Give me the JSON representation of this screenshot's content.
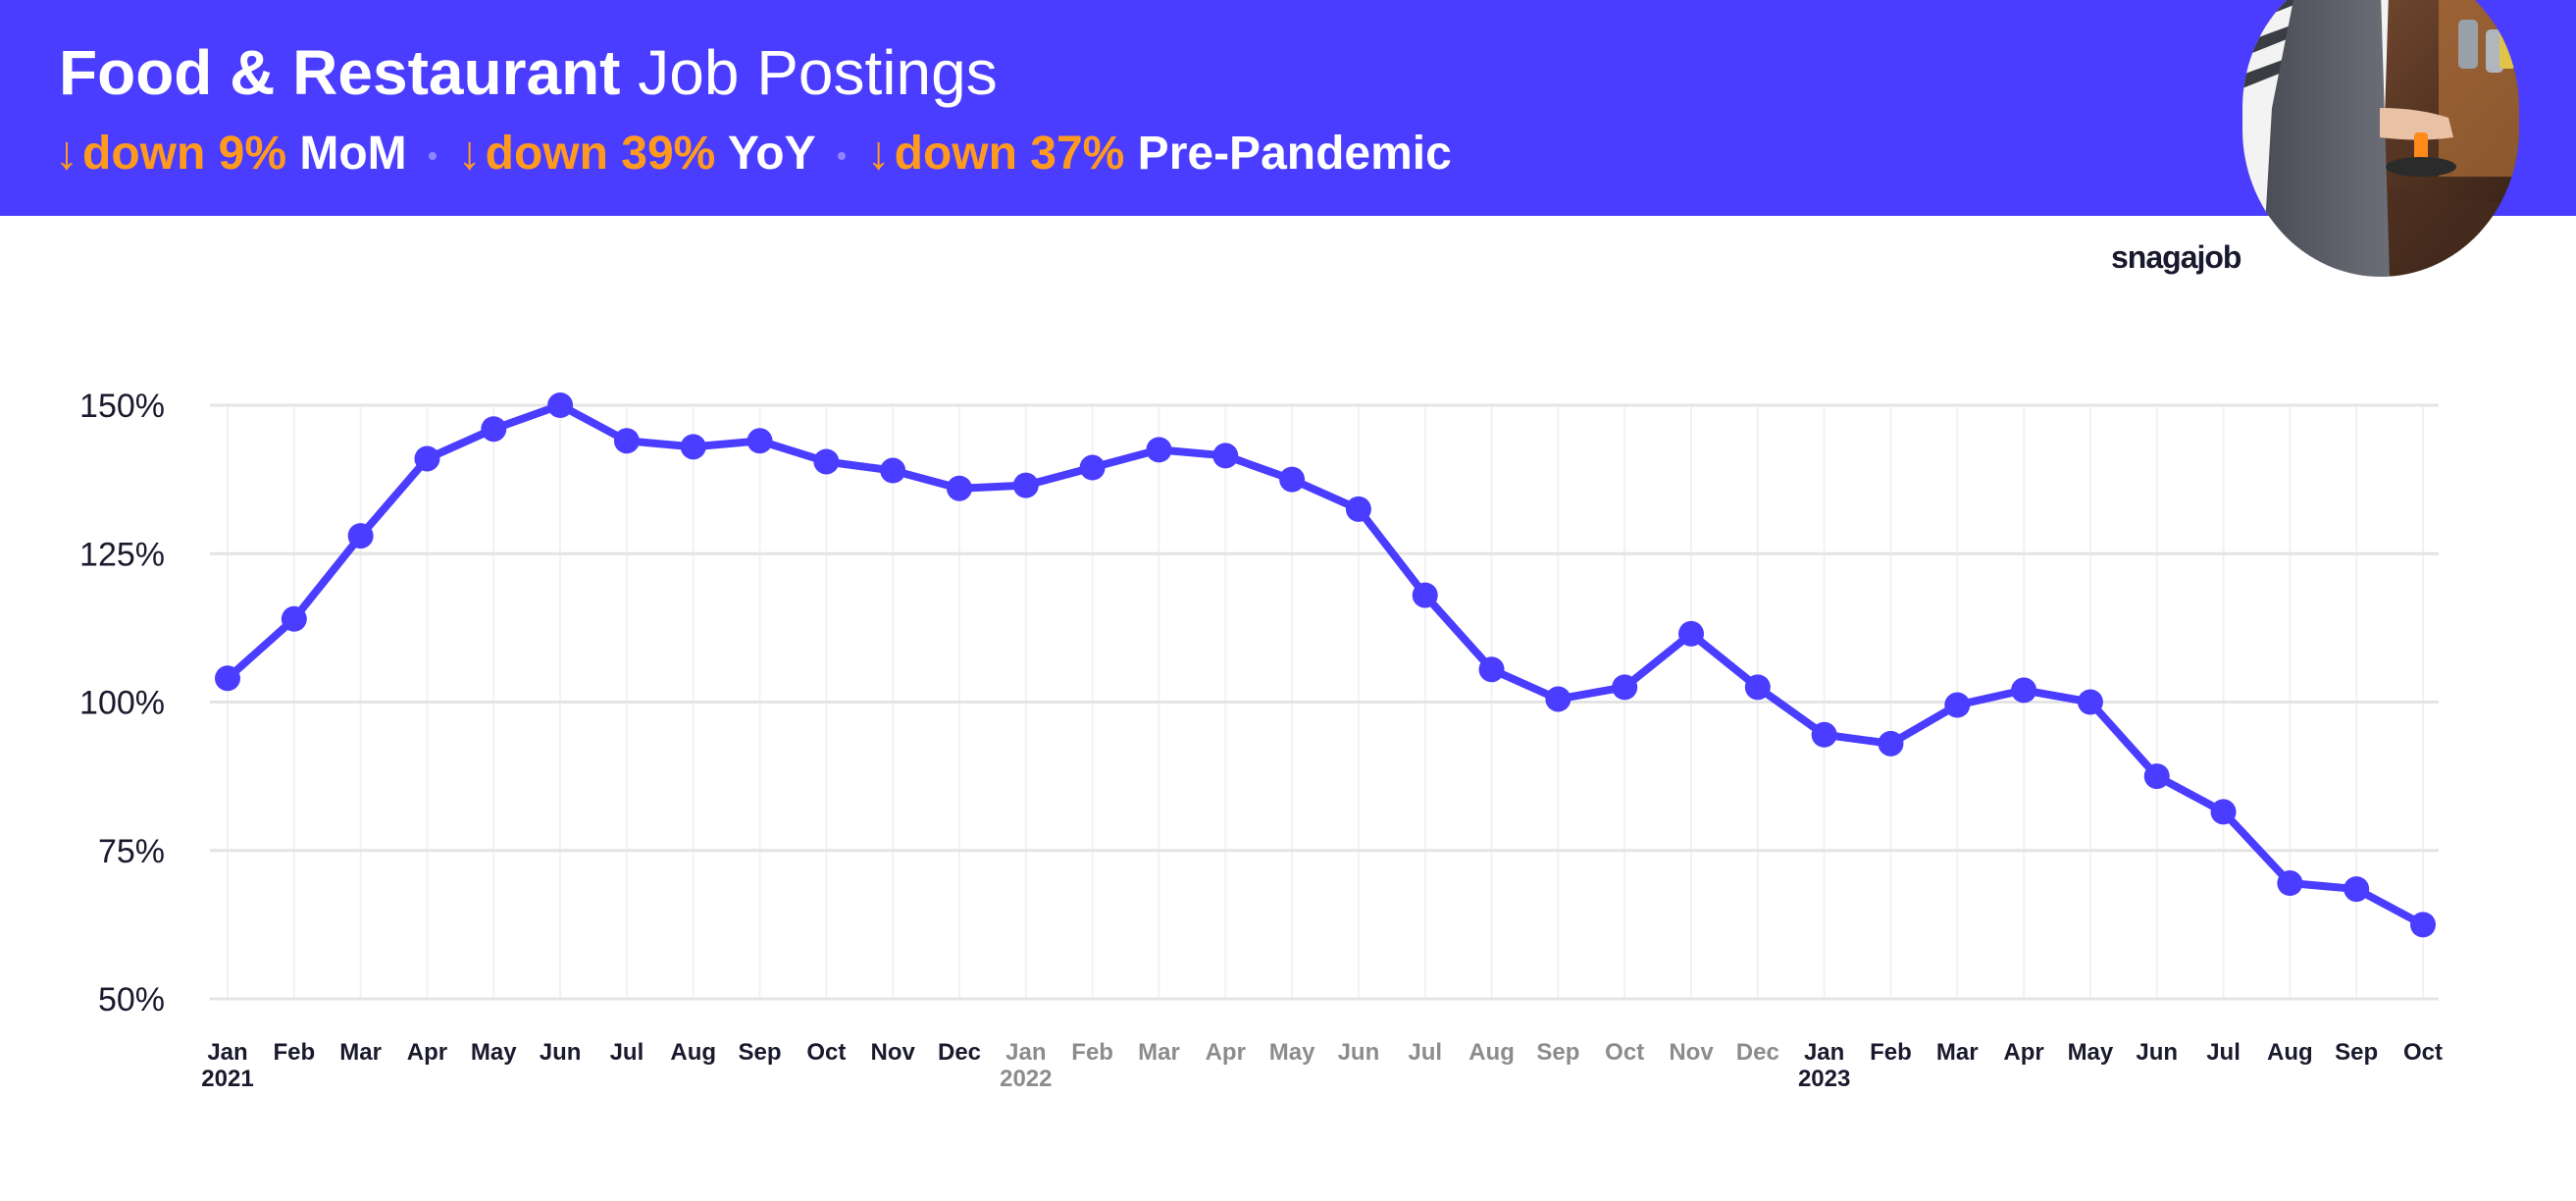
{
  "header": {
    "title_bold": "Food & Restaurant",
    "title_light": "Job Postings",
    "stats": [
      {
        "arrow": "↓",
        "change": "down 9%",
        "label": "MoM"
      },
      {
        "arrow": "↓",
        "change": "down 39%",
        "label": "YoY"
      },
      {
        "arrow": "↓",
        "change": "down 37%",
        "label": "Pre-Pandemic"
      }
    ]
  },
  "brand": "snagajob",
  "colors": {
    "header_bg": "#4a3dff",
    "accent": "#ff9a1f",
    "line": "#4a3dff",
    "grid": "#e4e4e4",
    "minor_grid": "#f2f2f2",
    "label_dark": "#1a1a2e",
    "label_muted": "#8c8c8c"
  },
  "chart_data": {
    "type": "line",
    "title": "Food & Restaurant Job Postings",
    "xlabel": "",
    "ylabel": "",
    "ylim": [
      50,
      150
    ],
    "yticks": [
      50,
      75,
      100,
      125,
      150
    ],
    "ytick_labels": [
      "50%",
      "75%",
      "100%",
      "125%",
      "150%"
    ],
    "grid": true,
    "categories": [
      "Jan",
      "Feb",
      "Mar",
      "Apr",
      "May",
      "Jun",
      "Jul",
      "Aug",
      "Sep",
      "Oct",
      "Nov",
      "Dec",
      "Jan",
      "Feb",
      "Mar",
      "Apr",
      "May",
      "Jun",
      "Jul",
      "Aug",
      "Sep",
      "Oct",
      "Nov",
      "Dec",
      "Jan",
      "Feb",
      "Mar",
      "Apr",
      "May",
      "Jun",
      "Jul",
      "Aug",
      "Sep",
      "Oct"
    ],
    "year_labels": [
      {
        "index": 0,
        "label": "2021"
      },
      {
        "index": 12,
        "label": "2022"
      },
      {
        "index": 24,
        "label": "2023"
      }
    ],
    "muted_range": [
      12,
      23
    ],
    "series": [
      {
        "name": "Food & Restaurant Job Postings",
        "values": [
          104,
          114,
          128,
          141,
          146,
          150,
          144,
          143,
          144,
          140.5,
          139,
          136,
          136.5,
          139.5,
          142.5,
          141.5,
          137.5,
          132.5,
          118,
          105.5,
          100.5,
          102.5,
          111.5,
          102.5,
          94.5,
          93,
          99.5,
          102,
          100,
          87.5,
          81.5,
          69.5,
          68.5,
          62.5
        ]
      }
    ]
  }
}
